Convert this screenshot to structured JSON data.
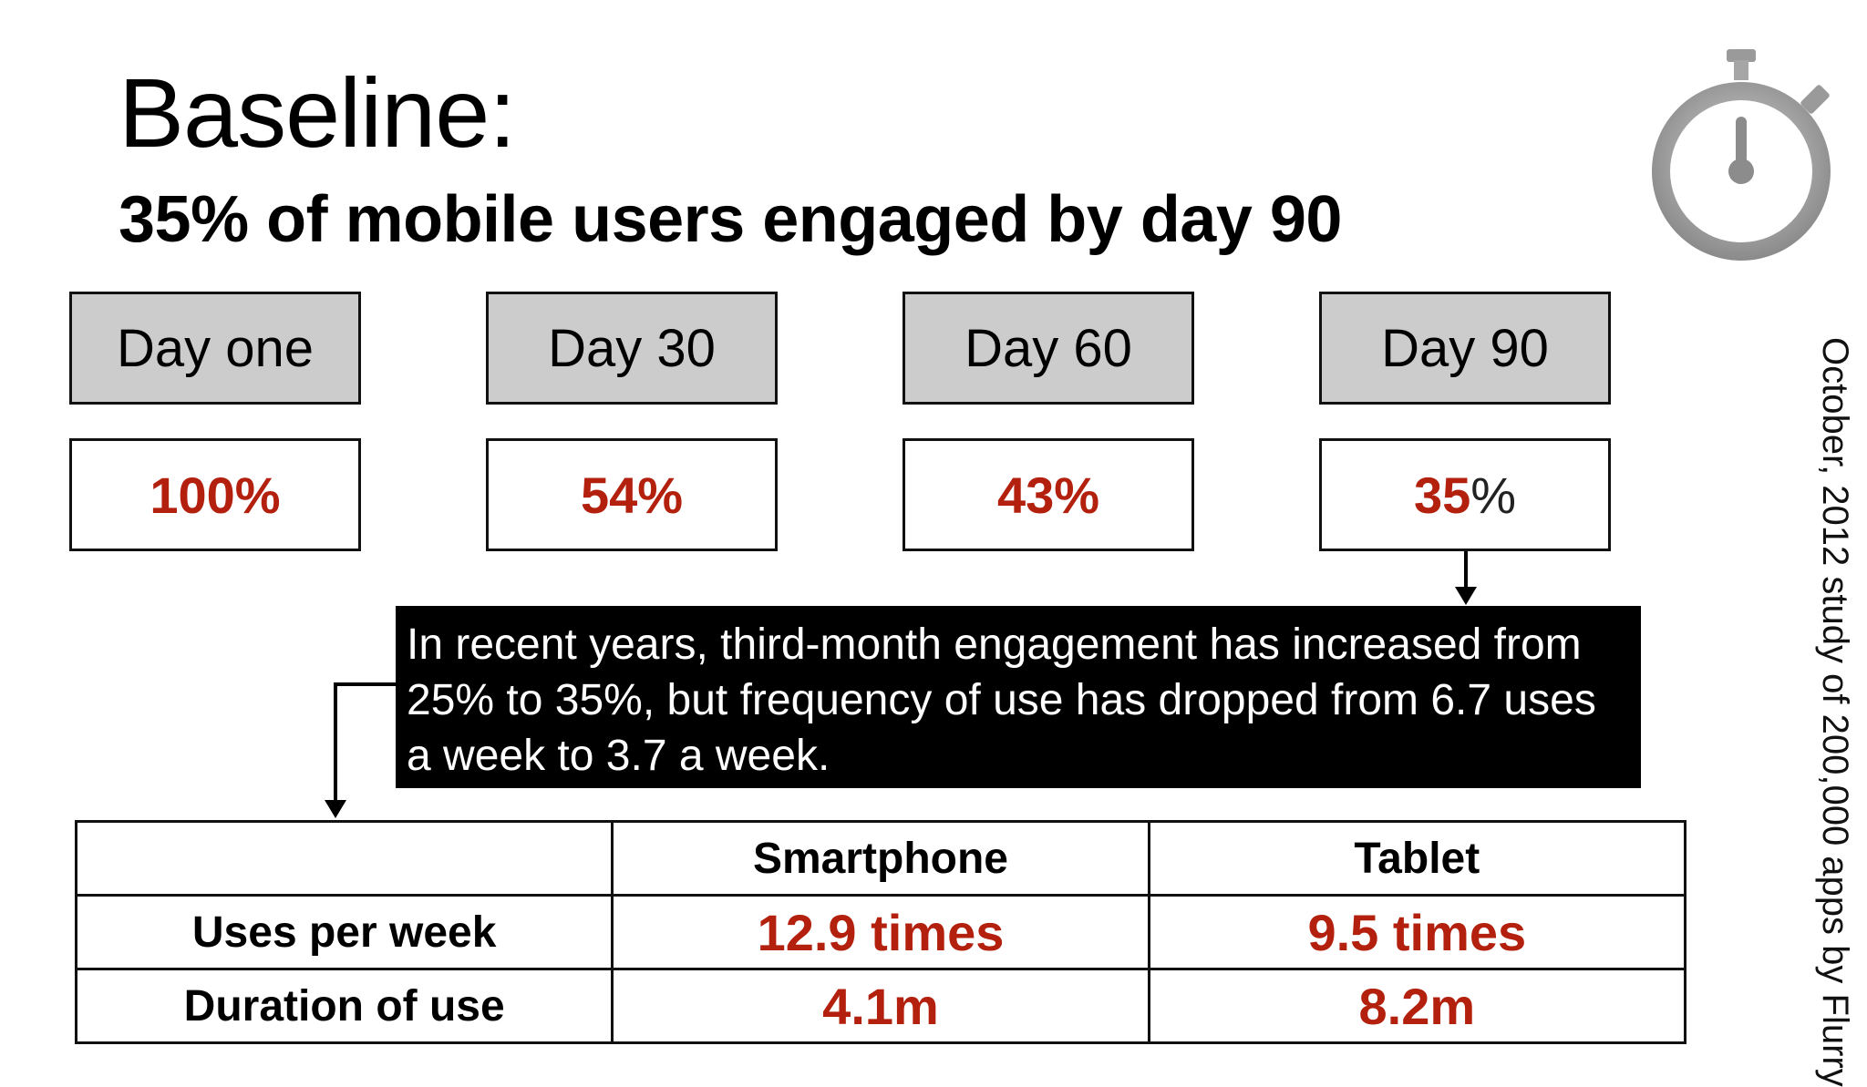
{
  "slide": {
    "title": "Baseline:",
    "subtitle": "35% of mobile users engaged by day 90",
    "icon": "stopwatch-icon",
    "source": "October, 2012 study of 200,000 apps by Flurry"
  },
  "days": [
    {
      "label": "Day one",
      "value": "100%",
      "suffix": ""
    },
    {
      "label": "Day 30",
      "value": "54%",
      "suffix": ""
    },
    {
      "label": "Day 60",
      "value": "43%",
      "suffix": ""
    },
    {
      "label": "Day 90",
      "value": "35",
      "suffix": "%"
    }
  ],
  "callout": {
    "text": "In recent years, third-month engagement has increased from 25% to 35%, but frequency of use has dropped from 6.7 uses a week to 3.7 a week."
  },
  "table": {
    "headers": [
      "",
      "Smartphone",
      "Tablet"
    ],
    "rows": [
      {
        "label": "Uses per week",
        "smartphone": "12.9 times",
        "tablet": "9.5 times"
      },
      {
        "label": "Duration of use",
        "smartphone": "4.1m",
        "tablet": "8.2m"
      }
    ]
  },
  "colors": {
    "accent_red": "#b3200e",
    "header_gray": "#cccccc",
    "callout_bg": "#000000"
  }
}
